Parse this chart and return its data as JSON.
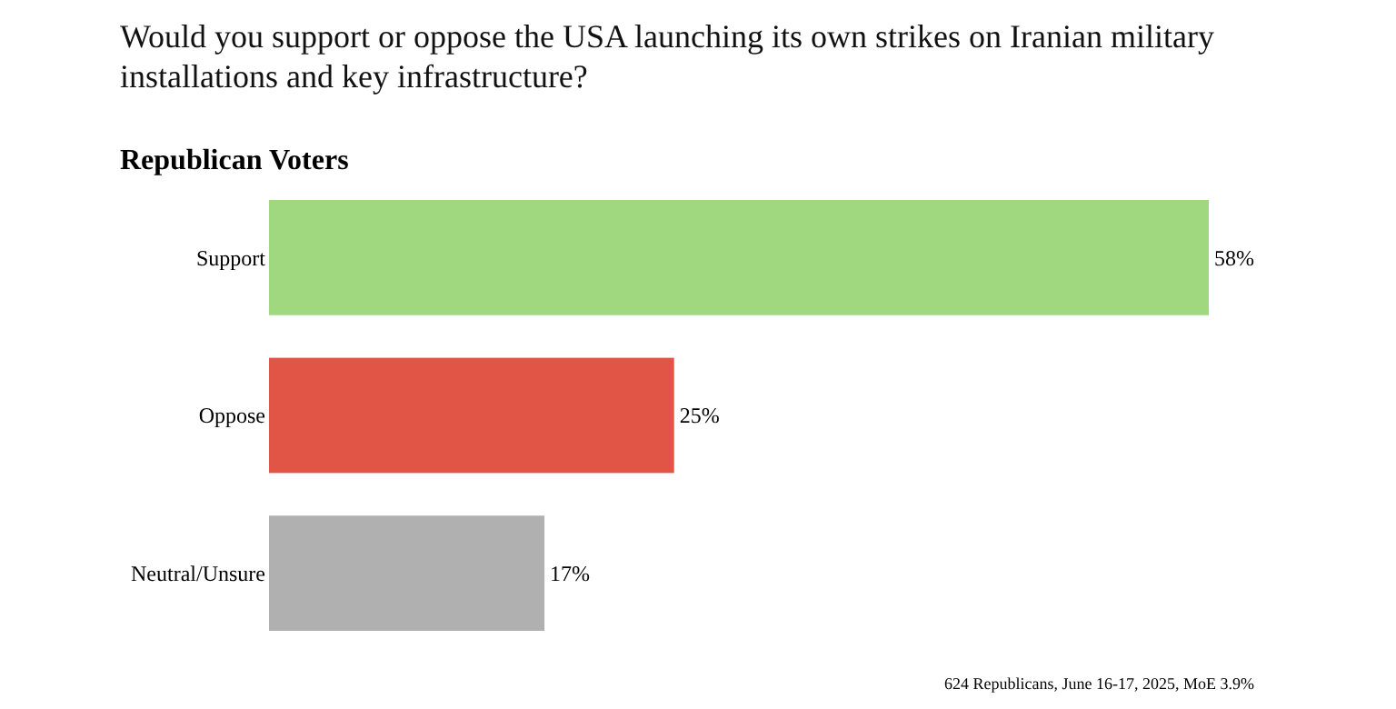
{
  "chart_data": {
    "type": "bar",
    "orientation": "horizontal",
    "title": "Would you support or oppose the USA launching its own strikes on Iranian military installations and key infrastructure?",
    "subtitle": "Republican Voters",
    "categories": [
      "Support",
      "Oppose",
      "Neutral/Unsure"
    ],
    "values": [
      58,
      25,
      17
    ],
    "colors": [
      "#a0d87f",
      "#e05546",
      "#b0b0b0"
    ],
    "value_labels": [
      "58%",
      "25%",
      "17%"
    ],
    "annotations": [
      "624 Republicans, June 16-17, 2025, MoE 3.9%"
    ]
  }
}
